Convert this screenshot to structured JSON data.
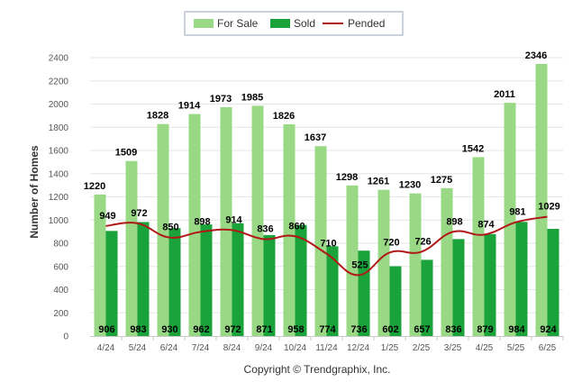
{
  "chart_data": {
    "type": "bar",
    "title": "",
    "xlabel": "",
    "ylabel": "Number of Homes",
    "ylim": [
      0,
      2400
    ],
    "yticks": [
      0,
      200,
      400,
      600,
      800,
      1000,
      1200,
      1400,
      1600,
      1800,
      2000,
      2200,
      2400
    ],
    "grid": true,
    "legend_position": "top-center",
    "categories": [
      "4/24",
      "5/24",
      "6/24",
      "7/24",
      "8/24",
      "9/24",
      "10/24",
      "11/24",
      "12/24",
      "1/25",
      "2/25",
      "3/25",
      "4/25",
      "5/25",
      "6/25"
    ],
    "series": [
      {
        "name": "For Sale",
        "type": "bar",
        "color": "#99d986",
        "values": [
          1220,
          1509,
          1828,
          1914,
          1973,
          1985,
          1826,
          1637,
          1298,
          1261,
          1230,
          1275,
          1542,
          2011,
          2346
        ]
      },
      {
        "name": "Sold",
        "type": "bar",
        "color": "#1aa33a",
        "values": [
          906,
          983,
          930,
          962,
          972,
          871,
          958,
          774,
          736,
          602,
          657,
          836,
          879,
          984,
          924
        ]
      },
      {
        "name": "Pended",
        "type": "line",
        "color": "#b01818",
        "values": [
          949,
          972,
          850,
          898,
          914,
          836,
          860,
          710,
          525,
          720,
          726,
          898,
          874,
          981,
          1029
        ]
      }
    ]
  },
  "footer": {
    "copyright": "Copyright © Trendgraphix, Inc."
  }
}
